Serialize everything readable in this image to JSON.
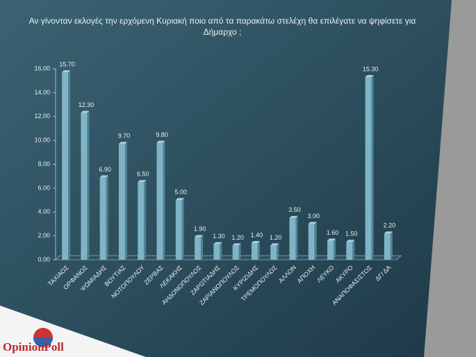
{
  "chart_data": {
    "type": "bar",
    "title": "Αν γίνονταν εκλογές την ερχόμενη Κυριακή ποιο από τα παρακάτω στελέχη θα επιλέγατε να ψηφίσετε για Δήμαρχο ;",
    "categories": [
      "ΤΑΧΙΑΟΣ",
      "ΟΡΦΑΝΟΣ",
      "ΨΩΜΙΑΔΗΣ",
      "ΒΟΥΤΙΑΣ",
      "ΝΟΤΟΠΟΥΛΟΥ",
      "ΖΕΡΒΑΣ",
      "ΛΕΚΑΚΗΣ",
      "ΑΗΔΟΝΟΠΟΥΛΟΣ",
      "ΖΑΡΩΤΙΑΔΗΣ",
      "ΖΑΡΙΑΝΟΠΟΥΛΟΣ",
      "ΚΥΡΙΖΙΔΗΣ",
      "ΤΡΕΜΟΠΟΥΛΟΣ",
      "ΑΛΛΟΝ",
      "ΑΠΟΧΗ",
      "ΛΕΥΚΟ",
      "ΑΚΥΡΟ",
      "ΑΝΑΠΟΦΑΣΙΣΤΟΣ",
      "ΔΓ/ ΔΑ"
    ],
    "values": [
      15.7,
      12.3,
      6.9,
      9.7,
      6.5,
      9.8,
      5,
      1.9,
      1.3,
      1.2,
      1.4,
      1.2,
      3.5,
      3,
      1.6,
      1.5,
      15.3,
      2.2
    ],
    "value_labels": [
      "15.70",
      "12.30",
      "6.90",
      "9.70",
      "6.50",
      "9.80",
      "5.00",
      "1.90",
      "1.30",
      "1.20",
      "1.40",
      "1.20",
      "3.50",
      "3.00",
      "1.60",
      "1.50",
      "15.30",
      "2.20"
    ],
    "color": "#7fb3c6",
    "ylim": [
      0,
      16
    ],
    "yticks": [
      {
        "value": 0,
        "label": "0.00"
      },
      {
        "value": 2,
        "label": "2.00"
      },
      {
        "value": 4,
        "label": "4.00"
      },
      {
        "value": 6,
        "label": "6.00"
      },
      {
        "value": 8,
        "label": "8.00"
      },
      {
        "value": 10,
        "label": "10.00"
      },
      {
        "value": 12,
        "label": "12.00"
      },
      {
        "value": 14,
        "label": "14.00"
      },
      {
        "value": 16,
        "label": "16.00"
      }
    ],
    "grid": false
  },
  "logo": {
    "text": "OpinionPoll"
  }
}
